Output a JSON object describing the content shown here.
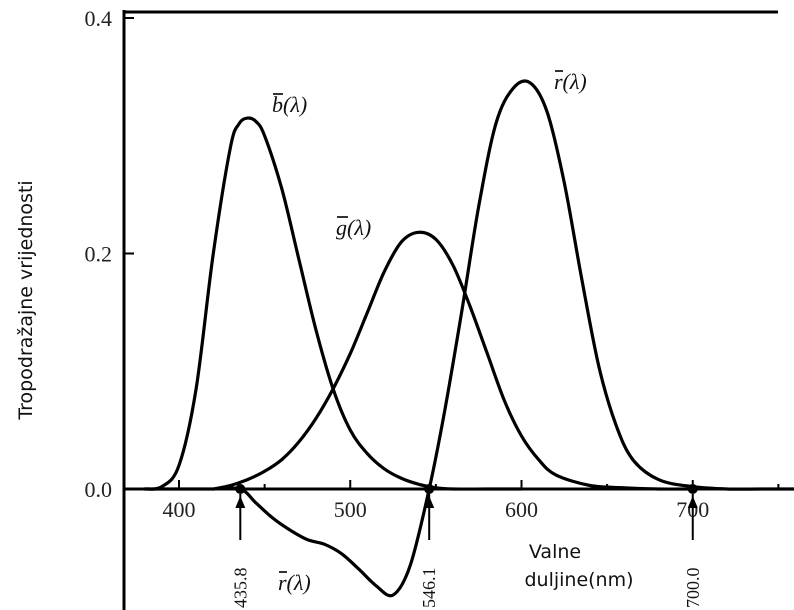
{
  "chart_data": {
    "type": "line",
    "title": "",
    "ylabel": "Tropodražajne vrijednosti",
    "xlabel_lines": [
      "Valne",
      "duljine(nm)"
    ],
    "xlim": [
      380,
      780
    ],
    "ylim": [
      -0.09,
      0.4
    ],
    "x_ticks": [
      400,
      500,
      600,
      700
    ],
    "x_tick_labels": [
      "400",
      "500",
      "600",
      "700"
    ],
    "y_ticks": [
      0.0,
      0.2,
      0.4
    ],
    "y_tick_labels": [
      "0.0",
      "0.2",
      "0.4"
    ],
    "grid": false,
    "series": [
      {
        "label_base": "b",
        "label_suffix": "(λ)",
        "x": [
          380,
          390,
          400,
          410,
          420,
          430,
          435,
          440,
          445,
          450,
          460,
          470,
          480,
          490,
          500,
          510,
          520,
          530,
          540,
          550,
          560,
          580,
          600
        ],
        "y": [
          0.0,
          0.002,
          0.02,
          0.085,
          0.2,
          0.29,
          0.31,
          0.315,
          0.312,
          0.3,
          0.255,
          0.195,
          0.135,
          0.085,
          0.05,
          0.03,
          0.017,
          0.009,
          0.004,
          0.001,
          0.0,
          0.0,
          0.0
        ]
      },
      {
        "label_base": "g",
        "label_suffix": "(λ)",
        "x": [
          420,
          430,
          440,
          450,
          460,
          470,
          480,
          490,
          500,
          510,
          520,
          530,
          540,
          550,
          560,
          570,
          580,
          590,
          600,
          610,
          620,
          640,
          660,
          680,
          700
        ],
        "y": [
          0.0,
          0.003,
          0.008,
          0.015,
          0.025,
          0.04,
          0.06,
          0.085,
          0.115,
          0.15,
          0.185,
          0.21,
          0.218,
          0.212,
          0.19,
          0.155,
          0.115,
          0.075,
          0.045,
          0.025,
          0.012,
          0.003,
          0.001,
          0.0,
          0.0
        ]
      },
      {
        "label_base": "r",
        "label_suffix": "(λ)",
        "x": [
          380,
          400,
          420,
          435.8,
          445,
          455,
          465,
          475,
          485,
          495,
          505,
          515,
          525,
          535,
          546.1,
          555,
          565,
          575,
          585,
          595,
          605,
          615,
          625,
          635,
          645,
          655,
          665,
          680,
          700,
          720,
          740,
          760,
          780
        ],
        "y": [
          0.0,
          0.0,
          0.0,
          0.0,
          -0.012,
          -0.025,
          -0.035,
          -0.043,
          -0.047,
          -0.055,
          -0.068,
          -0.082,
          -0.09,
          -0.065,
          0.0,
          0.065,
          0.15,
          0.24,
          0.31,
          0.34,
          0.345,
          0.32,
          0.26,
          0.18,
          0.105,
          0.055,
          0.025,
          0.008,
          0.002,
          0.0,
          0.0,
          0.0,
          0.0
        ]
      }
    ],
    "annotations": [
      {
        "text": "435.8",
        "x": 435.8
      },
      {
        "text": "546.1",
        "x": 546.1
      },
      {
        "text": "700.0",
        "x": 700.0
      }
    ]
  }
}
